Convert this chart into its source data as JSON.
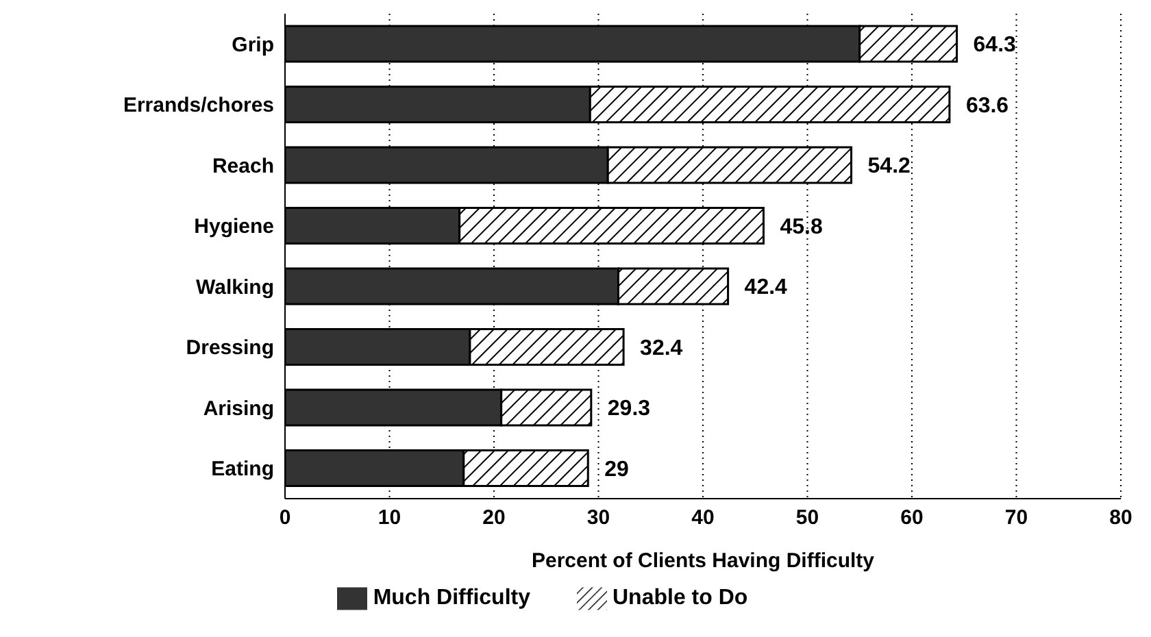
{
  "chart_data": {
    "type": "bar",
    "orientation": "horizontal",
    "stacked": true,
    "xlabel": "Percent of Clients Having Difficulty",
    "categories": [
      "Grip",
      "Errands/chores",
      "Reach",
      "Hygiene",
      "Walking",
      "Dressing",
      "Arising",
      "Eating"
    ],
    "series": [
      {
        "name": "Much Difficulty",
        "color": "#333333",
        "values": [
          55.0,
          29.2,
          30.9,
          16.7,
          31.9,
          17.7,
          20.7,
          17.1
        ]
      },
      {
        "name": "Unable to Do",
        "color": "#000000",
        "values": [
          9.3,
          34.4,
          23.3,
          29.1,
          10.5,
          14.7,
          8.6,
          11.9
        ]
      }
    ],
    "totals": [
      "64.3",
      "63.6",
      "54.2",
      "45.8",
      "42.4",
      "32.4",
      "29.3",
      "29"
    ],
    "xlim": [
      0,
      80
    ],
    "xticks": [
      0,
      10,
      20,
      30,
      40,
      50,
      60,
      70,
      80
    ],
    "grid": "x",
    "legend": "bottom"
  }
}
